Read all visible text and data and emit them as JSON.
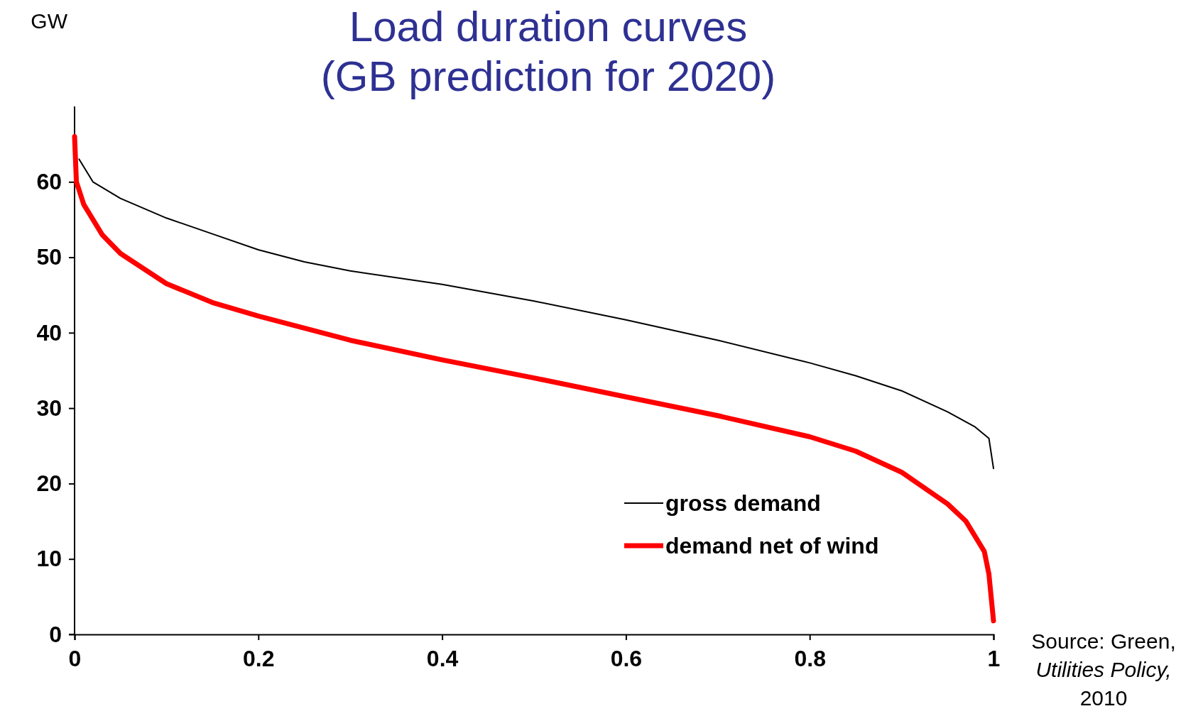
{
  "chart_data": {
    "type": "line",
    "title": "Load duration curves\n(GB prediction for 2020)",
    "ylabel": "GW",
    "annotations": [
      "Source: Green, $_{}$Utilities Policy,$_{}$ 2010"
    ],
    "xlim": [
      0,
      1
    ],
    "ylim": [
      0,
      70
    ],
    "xticks": [
      0,
      0.2,
      0.4,
      0.6,
      0.8,
      1
    ],
    "yticks": [
      0,
      10,
      20,
      30,
      40,
      50,
      60
    ],
    "grid": false,
    "legend": "bottom right",
    "series": [
      {
        "name": "gross demand",
        "color": "#000000",
        "x": [
          0.005,
          0.02,
          0.05,
          0.1,
          0.15,
          0.2,
          0.25,
          0.3,
          0.4,
          0.5,
          0.6,
          0.7,
          0.8,
          0.85,
          0.9,
          0.95,
          0.98,
          0.995,
          1
        ],
        "values": [
          63,
          60,
          57.8,
          55.2,
          53.1,
          51,
          49.4,
          48.2,
          46.4,
          44.2,
          41.7,
          39,
          36,
          34.3,
          32.3,
          29.5,
          27.5,
          26,
          22
        ]
      },
      {
        "name": "demand net of wind",
        "color": "#ff0000",
        "x": [
          0,
          0.002,
          0.01,
          0.03,
          0.05,
          0.1,
          0.15,
          0.2,
          0.3,
          0.4,
          0.5,
          0.6,
          0.7,
          0.8,
          0.85,
          0.9,
          0.95,
          0.97,
          0.99,
          0.995,
          1
        ],
        "values": [
          66,
          60,
          57,
          53,
          50.5,
          46.5,
          44,
          42.2,
          39,
          36.4,
          34,
          31.5,
          29,
          26.2,
          24.3,
          21.5,
          17.3,
          15,
          11,
          8,
          1.8
        ]
      }
    ]
  }
}
